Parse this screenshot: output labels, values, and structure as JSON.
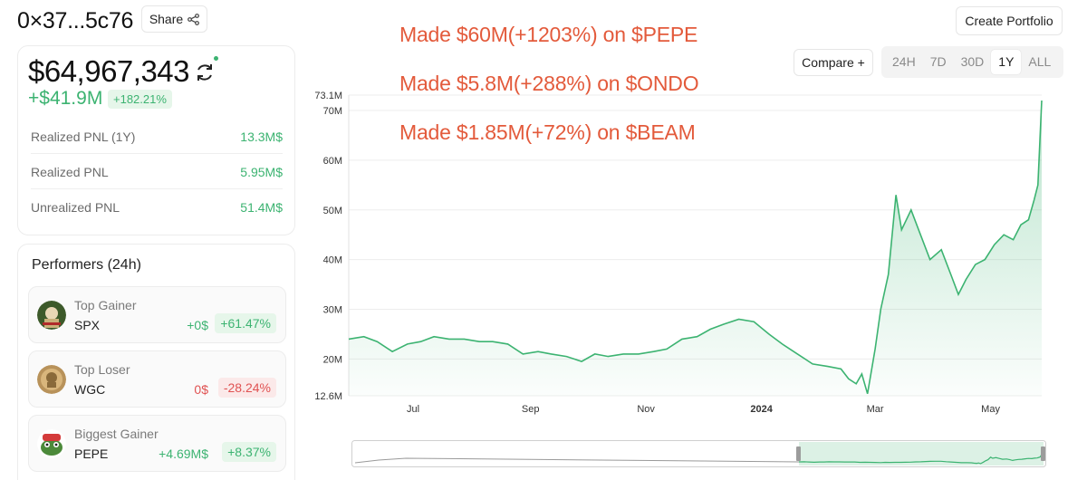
{
  "header": {
    "address": "0×37...5c76",
    "share_label": "Share",
    "create_portfolio_label": "Create Portfolio"
  },
  "portfolio": {
    "total_value": "$64,967,343",
    "delta_value": "+$41.9M",
    "delta_percent": "+182.21%",
    "pnl_rows": [
      {
        "label": "Realized PNL (1Y)",
        "value": "13.3M$"
      },
      {
        "label": "Realized PNL",
        "value": "5.95M$"
      },
      {
        "label": "Unrealized PNL",
        "value": "51.4M$"
      }
    ]
  },
  "performers": {
    "title": "Performers (24h)",
    "items": [
      {
        "kind": "Top Gainer",
        "token": "SPX",
        "amount": "+0$",
        "percent": "+61.47%",
        "tone": "green"
      },
      {
        "kind": "Top Loser",
        "token": "WGC",
        "amount": "0$",
        "percent": "-28.24%",
        "tone": "red"
      },
      {
        "kind": "Biggest Gainer",
        "token": "PEPE",
        "amount": "+4.69M$",
        "percent": "+8.37%",
        "tone": "green"
      }
    ]
  },
  "annotations": [
    "Made $60M(+1203%) on $PEPE",
    "Made $5.8M(+288%) on $ONDO",
    "Made $1.85M(+72%) on $BEAM"
  ],
  "controls": {
    "compare_label": "Compare +",
    "ranges": [
      "24H",
      "7D",
      "30D",
      "1Y",
      "ALL"
    ],
    "active_range": "1Y"
  },
  "colors": {
    "accent_green": "#3cb371",
    "loss_red": "#e05252",
    "annotation_red": "#e35a3b"
  },
  "chart_data": {
    "type": "area",
    "y_tick_labels": [
      "73.1M",
      "70M",
      "60M",
      "50M",
      "40M",
      "30M",
      "20M",
      "12.6M"
    ],
    "y_ticks": [
      73.1,
      70,
      60,
      50,
      40,
      30,
      20,
      12.6
    ],
    "ylim": [
      12.6,
      73.1
    ],
    "y_unit": "M",
    "x_tick_labels": [
      "Jul",
      "Sep",
      "Nov",
      "2024",
      "Mar",
      "May"
    ],
    "x_ticks": [
      "2023-07-01",
      "2023-09-01",
      "2023-11-01",
      "2024-01-01",
      "2024-03-01",
      "2024-05-01"
    ],
    "xlim": [
      "2023-05-28",
      "2024-05-28"
    ],
    "grid": true,
    "series": [
      {
        "x": [
          "2023-05-28",
          "2023-06-05",
          "2023-06-12",
          "2023-06-20",
          "2023-06-28",
          "2023-07-05",
          "2023-07-12",
          "2023-07-20",
          "2023-07-28",
          "2023-08-05",
          "2023-08-12",
          "2023-08-20",
          "2023-08-28",
          "2023-09-05",
          "2023-09-12",
          "2023-09-20",
          "2023-09-28",
          "2023-10-05",
          "2023-10-12",
          "2023-10-20",
          "2023-10-28",
          "2023-11-05",
          "2023-11-12",
          "2023-11-20",
          "2023-11-28",
          "2023-12-05",
          "2023-12-12",
          "2023-12-20",
          "2023-12-28",
          "2024-01-05",
          "2024-01-12",
          "2024-01-20",
          "2024-01-28",
          "2024-02-05",
          "2024-02-12",
          "2024-02-16",
          "2024-02-20",
          "2024-02-23",
          "2024-02-26",
          "2024-03-01",
          "2024-03-04",
          "2024-03-08",
          "2024-03-12",
          "2024-03-15",
          "2024-03-20",
          "2024-03-25",
          "2024-03-30",
          "2024-04-05",
          "2024-04-10",
          "2024-04-14",
          "2024-04-18",
          "2024-04-23",
          "2024-04-28",
          "2024-05-03",
          "2024-05-08",
          "2024-05-13",
          "2024-05-17",
          "2024-05-21",
          "2024-05-24",
          "2024-05-26",
          "2024-05-28"
        ],
        "values": [
          24,
          24.5,
          23.5,
          21.5,
          23,
          23.5,
          24.5,
          24,
          24,
          23.5,
          23.5,
          23,
          21,
          21.5,
          21,
          20.5,
          19.5,
          21,
          20.5,
          21,
          21,
          21.5,
          22,
          24,
          24.5,
          26,
          27,
          28,
          27.5,
          25,
          23,
          21,
          19,
          18.5,
          18,
          16,
          15,
          17,
          13,
          22,
          30,
          37,
          53,
          46,
          50,
          45,
          40,
          42,
          37,
          33,
          36,
          39,
          40,
          43,
          45,
          44,
          47,
          48,
          52,
          55,
          72
        ]
      }
    ]
  }
}
